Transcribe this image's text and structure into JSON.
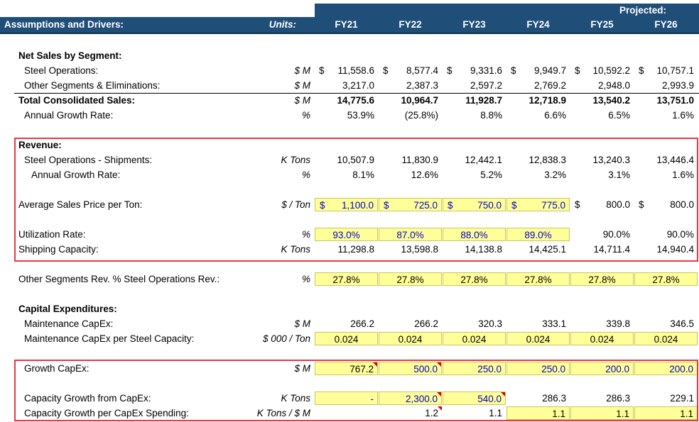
{
  "header": {
    "title": "Assumptions and Drivers:",
    "units": "Units:",
    "projected": "Projected:",
    "years": [
      "FY21",
      "FY22",
      "FY23",
      "FY24",
      "FY25",
      "FY26"
    ]
  },
  "rows": [
    {
      "id": "net-sales-header",
      "label": "Net Sales by Segment:",
      "bold": true,
      "indent": 0,
      "units": "",
      "cells": []
    },
    {
      "id": "steel-operations",
      "label": "Steel Operations:",
      "indent": 1,
      "units": "$ M",
      "cells": [
        {
          "cur": "$",
          "v": "11,558.6"
        },
        {
          "cur": "$",
          "v": "8,577.4"
        },
        {
          "cur": "$",
          "v": "9,331.6"
        },
        {
          "cur": "$",
          "v": "9,949.7"
        },
        {
          "cur": "$",
          "v": "10,592.2"
        },
        {
          "cur": "$",
          "v": "10,757.1"
        }
      ]
    },
    {
      "id": "other-segments",
      "label": "Other Segments & Eliminations:",
      "indent": 1,
      "units": "$ M",
      "cells": [
        {
          "v": "3,217.0"
        },
        {
          "v": "2,387.3"
        },
        {
          "v": "2,597.2"
        },
        {
          "v": "2,769.2"
        },
        {
          "v": "2,948.0"
        },
        {
          "v": "2,993.9"
        }
      ]
    },
    {
      "id": "total-sales",
      "label": "Total Consolidated Sales:",
      "bold": true,
      "indent": 0,
      "units": "$ M",
      "cells": [
        {
          "v": "14,775.6",
          "b": true
        },
        {
          "v": "10,964.7",
          "b": true
        },
        {
          "v": "11,928.7",
          "b": true
        },
        {
          "v": "12,718.9",
          "b": true
        },
        {
          "v": "13,540.2",
          "b": true
        },
        {
          "v": "13,751.0",
          "b": true
        }
      ]
    },
    {
      "id": "sales-growth",
      "label": "Annual Growth Rate:",
      "indent": 1,
      "units": "%",
      "cells": [
        {
          "v": "53.9%"
        },
        {
          "v": "(25.8%)"
        },
        {
          "v": "8.8%"
        },
        {
          "v": "6.6%"
        },
        {
          "v": "6.5%"
        },
        {
          "v": "1.6%"
        }
      ]
    },
    {
      "id": "revenue-header",
      "label": "Revenue:",
      "bold": true,
      "indent": 0,
      "units": "",
      "cells": []
    },
    {
      "id": "shipments",
      "label": "Steel Operations - Shipments:",
      "indent": 1,
      "units": "K Tons",
      "cells": [
        {
          "v": "10,507.9"
        },
        {
          "v": "11,830.9"
        },
        {
          "v": "12,442.1"
        },
        {
          "v": "12,838.3"
        },
        {
          "v": "13,240.3"
        },
        {
          "v": "13,446.4"
        }
      ]
    },
    {
      "id": "shipments-growth",
      "label": "Annual Growth Rate:",
      "indent": 2,
      "units": "%",
      "cells": [
        {
          "v": "8.1%"
        },
        {
          "v": "12.6%"
        },
        {
          "v": "5.2%"
        },
        {
          "v": "3.2%"
        },
        {
          "v": "3.1%"
        },
        {
          "v": "1.6%"
        }
      ]
    },
    {
      "id": "avg-price",
      "label": "Average Sales Price per Ton:",
      "indent": 0,
      "units": "$ / Ton",
      "cells": [
        {
          "cur": "$",
          "v": "1,100.0",
          "y": true,
          "bl": true
        },
        {
          "cur": "$",
          "v": "725.0",
          "y": true,
          "bl": true
        },
        {
          "cur": "$",
          "v": "750.0",
          "y": true,
          "bl": true
        },
        {
          "cur": "$",
          "v": "775.0",
          "y": true,
          "bl": true
        },
        {
          "cur": "$",
          "v": "800.0"
        },
        {
          "cur": "$",
          "v": "800.0"
        }
      ]
    },
    {
      "id": "utilization",
      "label": "Utilization Rate:",
      "indent": 0,
      "units": "%",
      "cells": [
        {
          "v": "93.0%",
          "y": true,
          "bl": true,
          "c": true
        },
        {
          "v": "87.0%",
          "y": true,
          "bl": true,
          "c": true
        },
        {
          "v": "88.0%",
          "y": true,
          "bl": true,
          "c": true
        },
        {
          "v": "89.0%",
          "y": true,
          "bl": true,
          "c": true
        },
        {
          "v": "90.0%"
        },
        {
          "v": "90.0%"
        }
      ]
    },
    {
      "id": "shipping-capacity",
      "label": "Shipping Capacity:",
      "indent": 0,
      "units": "K Tons",
      "cells": [
        {
          "v": "11,298.8"
        },
        {
          "v": "13,598.8"
        },
        {
          "v": "14,138.8"
        },
        {
          "v": "14,425.1"
        },
        {
          "v": "14,711.4"
        },
        {
          "v": "14,940.4"
        }
      ]
    },
    {
      "id": "other-seg-pct",
      "label": "Other Segments Rev. % Steel Operations Rev.:",
      "indent": 0,
      "units": "%",
      "cells": [
        {
          "v": "27.8%",
          "y": true,
          "c": true
        },
        {
          "v": "27.8%",
          "y": true,
          "c": true
        },
        {
          "v": "27.8%",
          "y": true,
          "c": true
        },
        {
          "v": "27.8%",
          "y": true,
          "c": true
        },
        {
          "v": "27.8%",
          "y": true,
          "c": true
        },
        {
          "v": "27.8%",
          "y": true,
          "c": true
        }
      ]
    },
    {
      "id": "capex-header",
      "label": "Capital Expenditures:",
      "bold": true,
      "indent": 0,
      "units": "",
      "cells": []
    },
    {
      "id": "maint-capex",
      "label": "Maintenance CapEx:",
      "indent": 1,
      "units": "$ M",
      "cells": [
        {
          "v": "266.2"
        },
        {
          "v": "266.2"
        },
        {
          "v": "320.3"
        },
        {
          "v": "333.1"
        },
        {
          "v": "339.8"
        },
        {
          "v": "346.5"
        }
      ]
    },
    {
      "id": "maint-capex-per-cap",
      "label": "Maintenance CapEx per Steel Capacity:",
      "indent": 1,
      "units": "$ 000 / Ton",
      "cells": [
        {
          "v": "0.024",
          "y": true,
          "c": true
        },
        {
          "v": "0.024",
          "y": true,
          "c": true
        },
        {
          "v": "0.024",
          "y": true,
          "c": true
        },
        {
          "v": "0.024",
          "y": true,
          "c": true
        },
        {
          "v": "0.024",
          "y": true,
          "c": true
        },
        {
          "v": "0.024",
          "y": true,
          "c": true
        }
      ]
    },
    {
      "id": "growth-capex",
      "label": "Growth CapEx:",
      "indent": 1,
      "units": "$ M",
      "cells": [
        {
          "v": "767.2",
          "y": true,
          "f": true
        },
        {
          "v": "500.0",
          "y": true,
          "bl": true,
          "f": true
        },
        {
          "v": "250.0",
          "y": true,
          "bl": true
        },
        {
          "v": "250.0",
          "y": true,
          "bl": true
        },
        {
          "v": "200.0",
          "y": true,
          "bl": true
        },
        {
          "v": "200.0",
          "y": true,
          "bl": true
        }
      ]
    },
    {
      "id": "capacity-growth",
      "label": "Capacity Growth from CapEx:",
      "indent": 1,
      "units": "K Tons",
      "cells": [
        {
          "v": "-",
          "y": true,
          "bl": true
        },
        {
          "v": "2,300.0",
          "y": true,
          "bl": true,
          "f": true
        },
        {
          "v": "540.0",
          "y": true,
          "bl": true,
          "f": true
        },
        {
          "v": "286.3"
        },
        {
          "v": "286.3"
        },
        {
          "v": "229.1"
        }
      ]
    },
    {
      "id": "capacity-per-capex",
      "label": "Capacity Growth per CapEx Spending:",
      "indent": 1,
      "units": "K Tons / $ M",
      "cells": [
        {
          "v": ""
        },
        {
          "v": "1.2",
          "f": true
        },
        {
          "v": "1.1"
        },
        {
          "v": "1.1",
          "y": true
        },
        {
          "v": "1.1",
          "y": true
        },
        {
          "v": "1.1",
          "y": true
        }
      ]
    }
  ]
}
